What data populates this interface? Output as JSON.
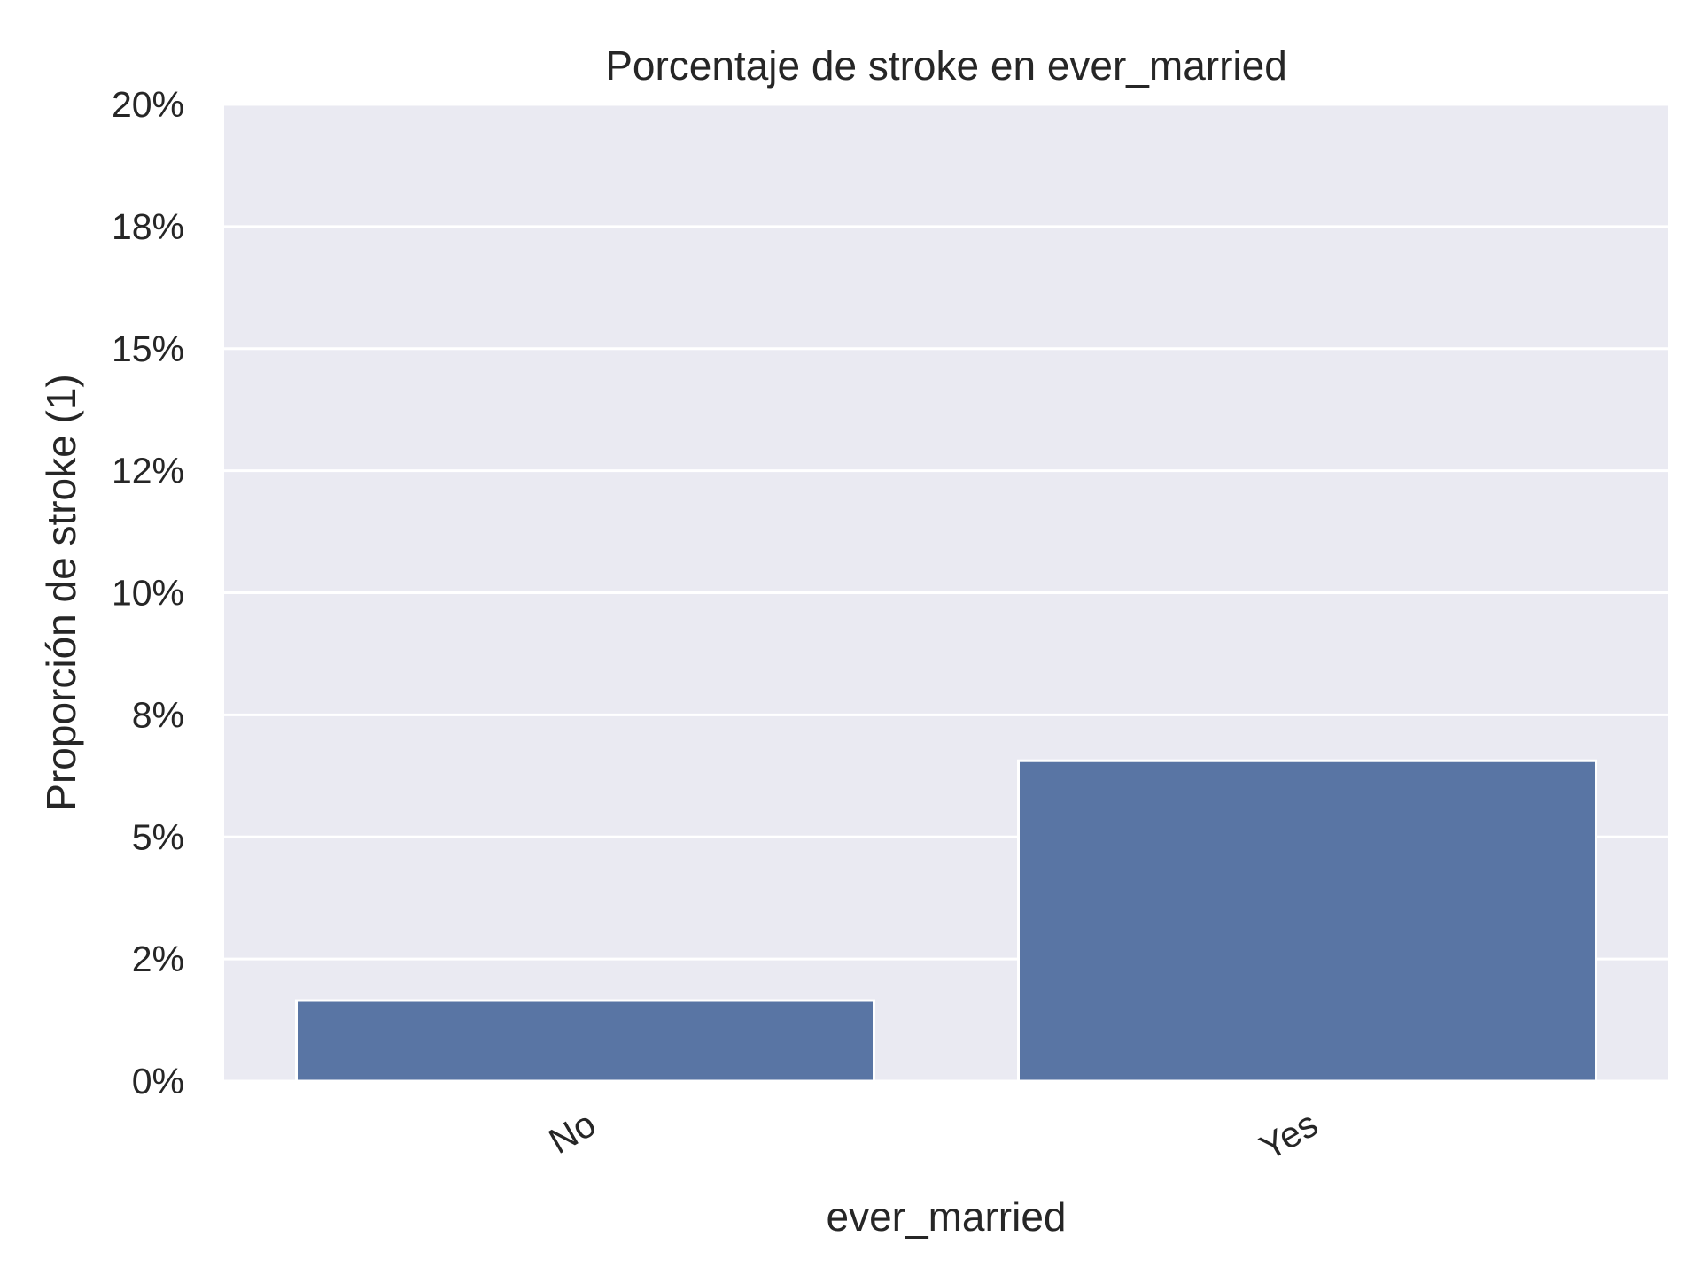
{
  "chart_data": {
    "type": "bar",
    "title": "Porcentaje de stroke en ever_married",
    "xlabel": "ever_married",
    "ylabel": "Proporción de stroke (1)",
    "categories": [
      "No",
      "Yes"
    ],
    "values": [
      0.0165,
      0.0656
    ],
    "ylim": [
      0,
      0.2
    ],
    "yticks": [
      0,
      0.025,
      0.05,
      0.075,
      0.1,
      0.125,
      0.15,
      0.175,
      0.2
    ],
    "ytick_labels": [
      "0%",
      "2%",
      "5%",
      "8%",
      "10%",
      "12%",
      "15%",
      "18%",
      "20%"
    ],
    "grid": true,
    "colors": {
      "bar": "#5975a4",
      "plot_background": "#eaeaf2",
      "grid": "#ffffff",
      "text": "#262626"
    }
  }
}
